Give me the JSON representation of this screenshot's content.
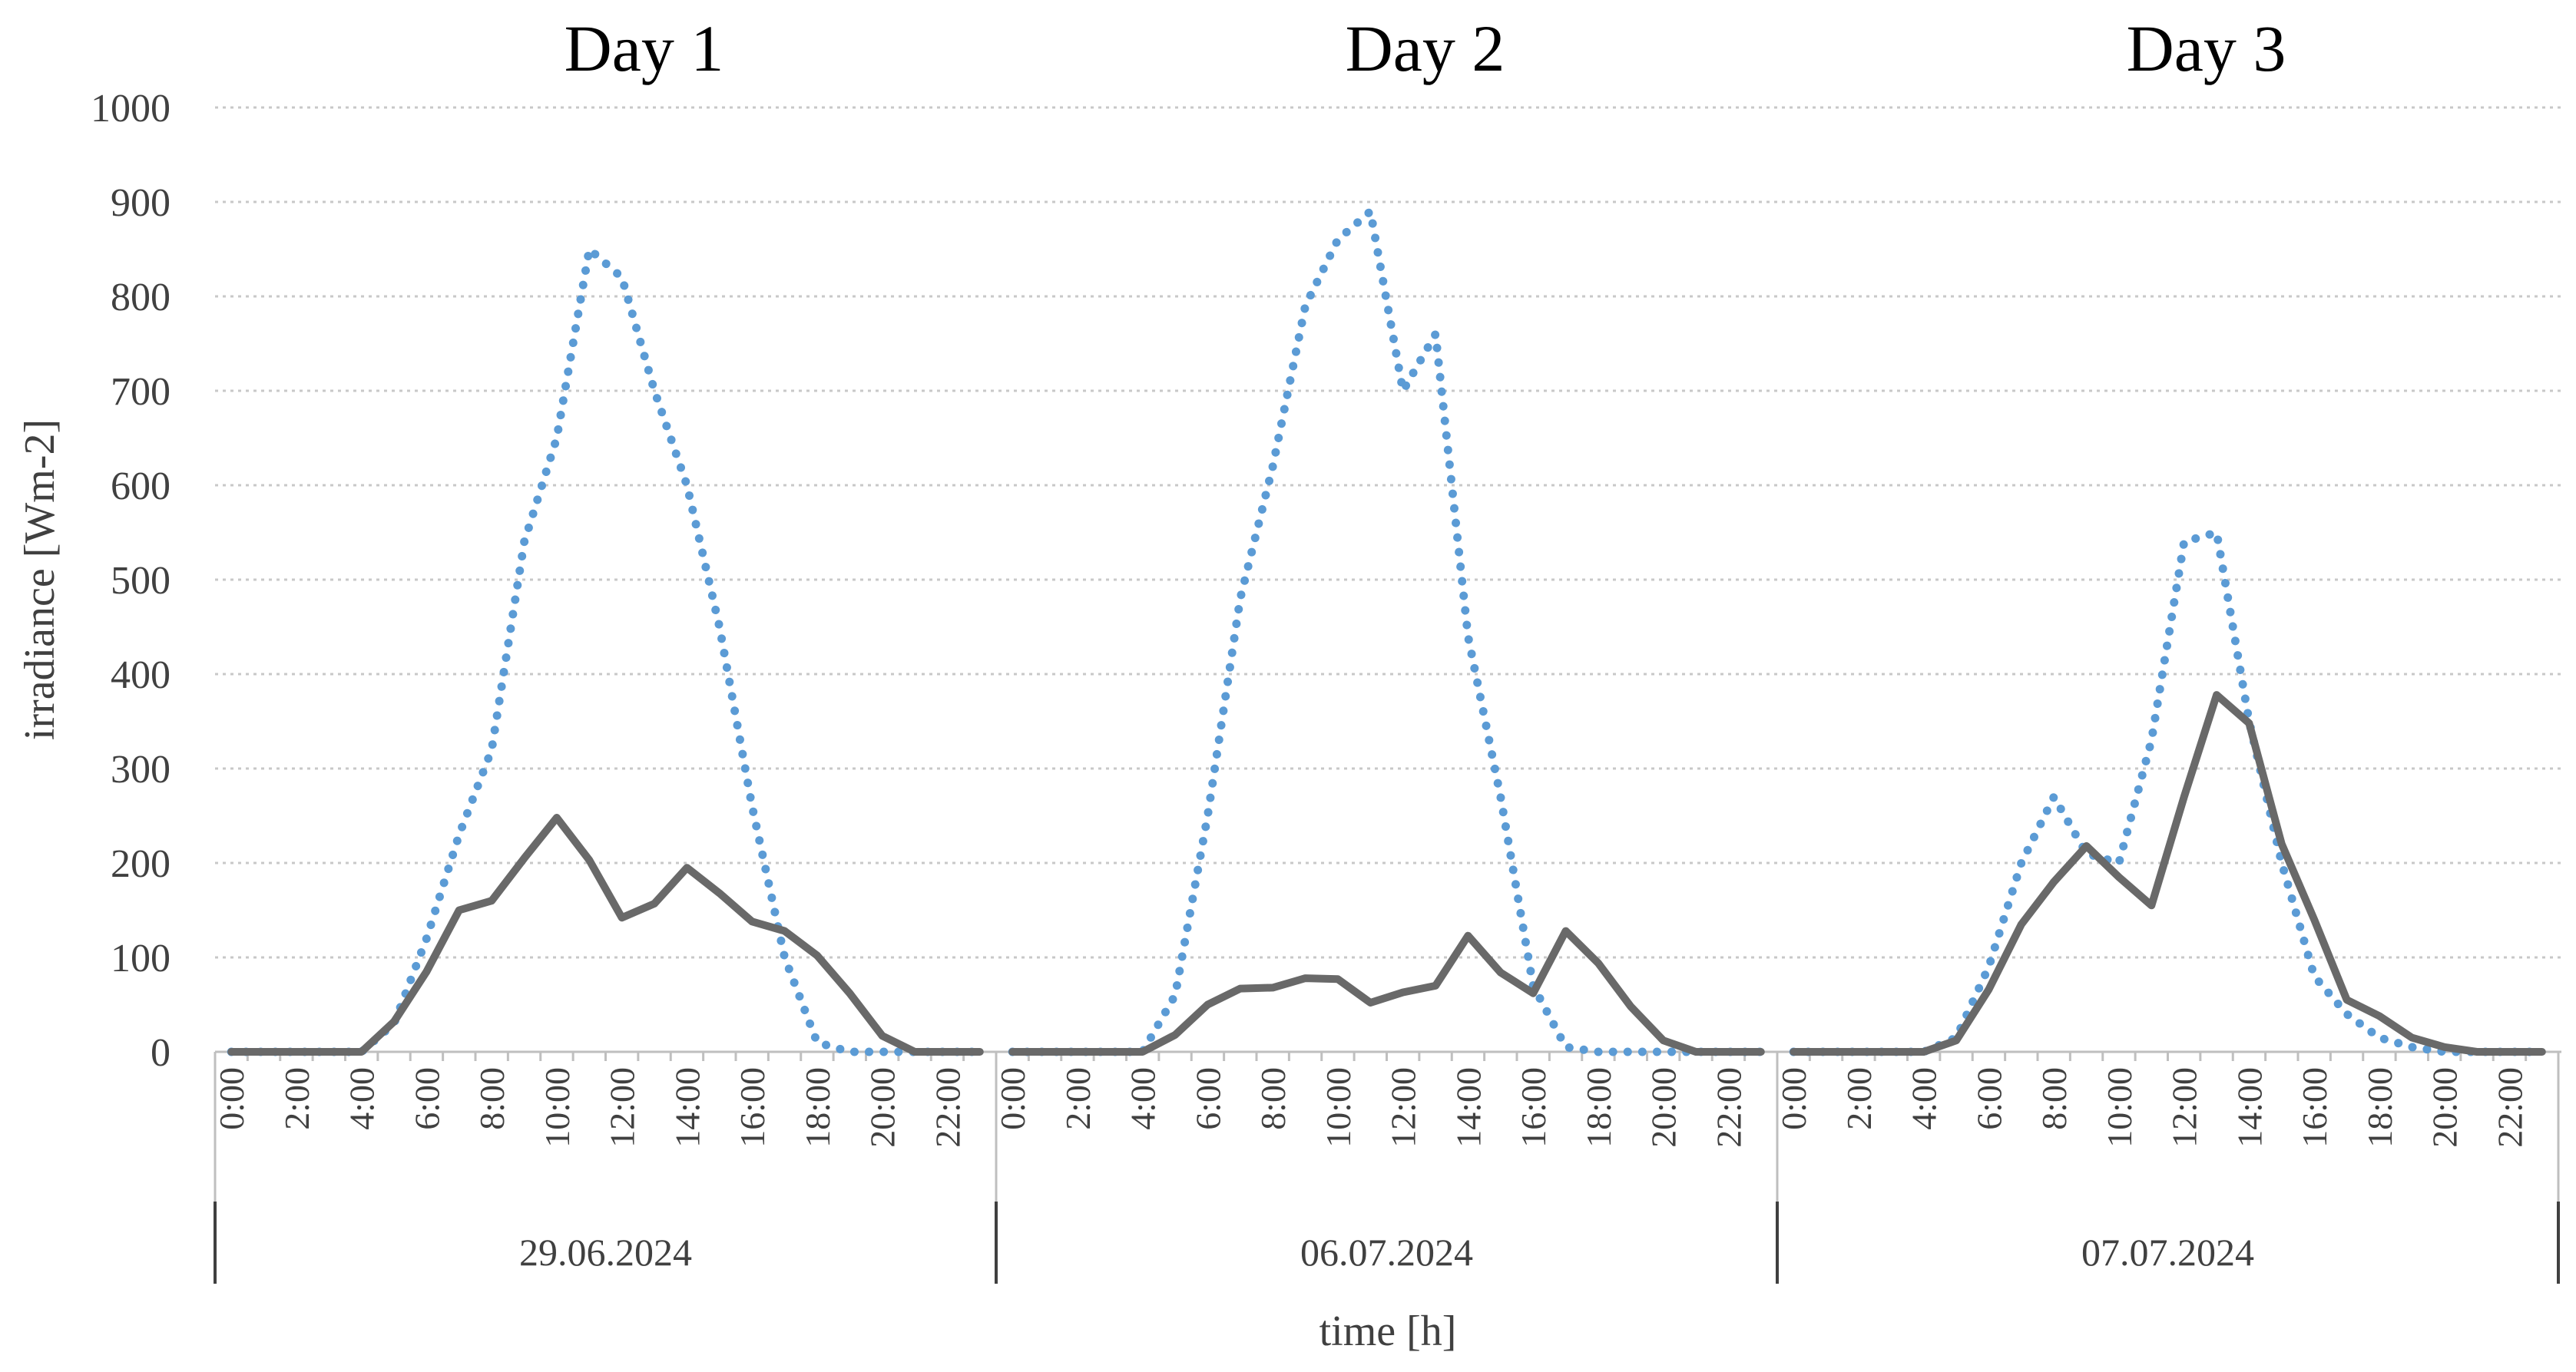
{
  "chart_data": {
    "type": "line",
    "ylabel": "irradiance [Wm-2]",
    "xlabel": "time [h]",
    "ylim": [
      0,
      1000
    ],
    "yticks": [
      "0",
      "100",
      "200",
      "300",
      "400",
      "500",
      "600",
      "700",
      "800",
      "900",
      "1000"
    ],
    "xtick_labels": [
      "0:00",
      "2:00",
      "4:00",
      "6:00",
      "8:00",
      "10:00",
      "12:00",
      "14:00",
      "16:00",
      "18:00",
      "20:00",
      "22:00"
    ],
    "grid": true,
    "colors": {
      "dotted": "#5b9bd5",
      "solid": "#696969"
    },
    "days": [
      {
        "title": "Day 1",
        "date": "29.06.2024",
        "dotted": [
          0,
          0,
          0,
          0,
          0,
          30,
          120,
          230,
          320,
          540,
          650,
          850,
          820,
          700,
          600,
          450,
          260,
          100,
          10,
          0,
          0,
          0,
          0,
          0
        ],
        "solid": [
          0,
          0,
          0,
          0,
          0,
          32,
          85,
          150,
          160,
          205,
          248,
          203,
          142,
          157,
          195,
          168,
          138,
          128,
          102,
          62,
          17,
          0,
          0,
          0
        ]
      },
      {
        "title": "Day 2",
        "date": "06.07.2024",
        "dotted": [
          0,
          0,
          0,
          0,
          0,
          60,
          250,
          480,
          620,
          790,
          860,
          890,
          700,
          760,
          440,
          270,
          70,
          5,
          0,
          0,
          0,
          0,
          0,
          0
        ],
        "solid": [
          0,
          0,
          0,
          0,
          0,
          18,
          50,
          67,
          68,
          78,
          77,
          52,
          63,
          70,
          123,
          84,
          62,
          128,
          94,
          48,
          12,
          0,
          0,
          0
        ]
      },
      {
        "title": "Day 3",
        "date": "07.07.2024",
        "dotted": [
          0,
          0,
          0,
          0,
          0,
          15,
          90,
          200,
          270,
          210,
          200,
          330,
          540,
          550,
          350,
          200,
          80,
          40,
          15,
          5,
          0,
          0,
          0,
          0
        ],
        "solid": [
          0,
          0,
          0,
          0,
          0,
          12,
          66,
          135,
          180,
          218,
          185,
          155,
          270,
          378,
          348,
          220,
          140,
          55,
          38,
          15,
          5,
          0,
          0,
          0
        ]
      }
    ]
  }
}
